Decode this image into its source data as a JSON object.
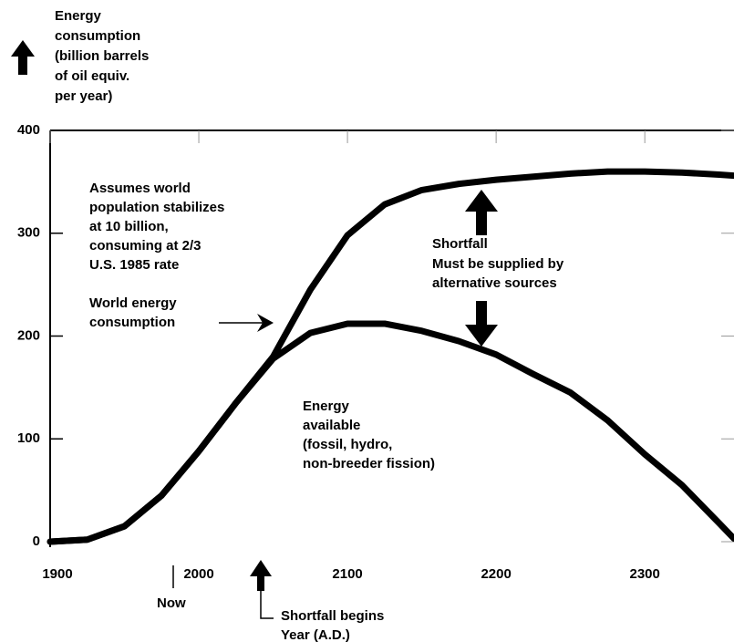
{
  "chart_data": {
    "type": "line",
    "y_label": [
      "Energy",
      "consumption",
      "(billion barrels",
      "of oil equiv.",
      "per year)"
    ],
    "x_label": [
      "Shortfall begins",
      "Year (A.D.)"
    ],
    "annotations": {
      "assumption": [
        "Assumes world",
        "population stabilizes",
        "at 10 billion,",
        "consuming at 2/3",
        "U.S. 1985 rate"
      ],
      "consumption": [
        "World energy",
        "consumption"
      ],
      "shortfall": [
        "Shortfall",
        "Must be supplied by",
        "alternative sources"
      ],
      "available": [
        "Energy",
        "available",
        "(fossil, hydro,",
        "non-breeder fission)"
      ],
      "now": "Now"
    },
    "x": [
      1900,
      1925,
      1950,
      1975,
      2000,
      2025,
      2050,
      2075,
      2100,
      2125,
      2150,
      2175,
      2200,
      2225,
      2250,
      2275,
      2300,
      2325,
      2350,
      2360
    ],
    "series": [
      {
        "color": "#000000",
        "values": [
          0,
          2,
          15,
          45,
          88,
          135,
          180,
          245,
          298,
          328,
          342,
          348,
          352,
          355,
          358,
          360,
          360,
          359,
          357,
          356
        ]
      },
      {
        "color": "#000000",
        "values": [
          0,
          2,
          15,
          45,
          88,
          135,
          178,
          203,
          212,
          212,
          205,
          195,
          182,
          163,
          145,
          118,
          85,
          55,
          18,
          3
        ]
      }
    ],
    "xlim": [
      1900,
      2360
    ],
    "ylim": [
      0,
      400
    ],
    "xticks": [
      1900,
      2000,
      2100,
      2200,
      2300
    ],
    "yticks": [
      0,
      100,
      200,
      300,
      400
    ]
  }
}
